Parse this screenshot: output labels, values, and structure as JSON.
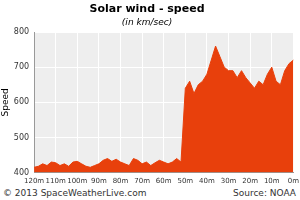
{
  "chart_data": {
    "type": "line",
    "title": "Solar wind - speed",
    "subtitle": "(in km/sec)",
    "y_label": "Speed",
    "categories": [
      "120m",
      null,
      null,
      null,
      null,
      "110m",
      null,
      null,
      null,
      null,
      "100m",
      null,
      null,
      null,
      null,
      "90m",
      null,
      null,
      null,
      null,
      "80m",
      null,
      null,
      null,
      null,
      "70m",
      null,
      null,
      null,
      null,
      "60m",
      null,
      null,
      null,
      null,
      "50m",
      null,
      null,
      null,
      null,
      "40m",
      null,
      null,
      null,
      null,
      "30m",
      null,
      null,
      null,
      null,
      "20m",
      null,
      null,
      null,
      null,
      "10m",
      null,
      null,
      null,
      null,
      "0m"
    ],
    "values": [
      415,
      418,
      425,
      420,
      430,
      428,
      420,
      425,
      418,
      430,
      432,
      425,
      418,
      415,
      420,
      425,
      435,
      440,
      432,
      438,
      430,
      425,
      420,
      440,
      435,
      425,
      430,
      420,
      428,
      435,
      430,
      425,
      430,
      440,
      430,
      640,
      660,
      625,
      650,
      660,
      680,
      720,
      760,
      730,
      700,
      690,
      690,
      670,
      690,
      670,
      655,
      640,
      660,
      650,
      680,
      700,
      660,
      650,
      690,
      710,
      720
    ],
    "color": "#e8400c",
    "ylim": [
      400,
      800
    ],
    "yticks": [
      400,
      500,
      600,
      700,
      800
    ],
    "grid": true,
    "footer": {
      "left": "© 2013 SpaceWeatherLive.com",
      "right": "Source: NOAA"
    }
  }
}
